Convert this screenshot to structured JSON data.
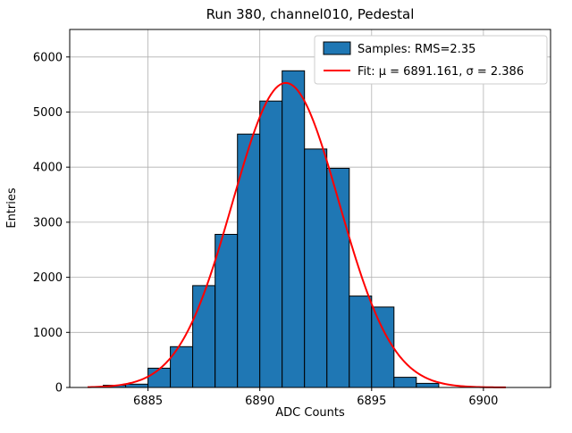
{
  "chart_data": {
    "type": "bar",
    "subtype": "histogram",
    "title": "Run 380, channel010, Pedestal",
    "xlabel": "ADC Counts",
    "ylabel": "Entries",
    "grid": true,
    "xlim": [
      6881.5,
      6903
    ],
    "ylim": [
      0,
      6500
    ],
    "xticks": [
      6885,
      6890,
      6895,
      6900
    ],
    "yticks": [
      0,
      1000,
      2000,
      3000,
      4000,
      5000,
      6000
    ],
    "bin_width": 1,
    "bin_left_edges": [
      6883,
      6884,
      6885,
      6886,
      6887,
      6888,
      6889,
      6890,
      6891,
      6892,
      6893,
      6894,
      6895,
      6896,
      6897
    ],
    "values": [
      40,
      60,
      350,
      740,
      1850,
      2780,
      4600,
      5200,
      5750,
      4330,
      3980,
      1660,
      1460,
      185,
      75
    ],
    "bar_color": "#1f77b4",
    "bar_edge_color": "#000000",
    "grid_color": "#b0b0b0",
    "fit": {
      "mu": 6891.161,
      "sigma": 2.386,
      "amplitude": 5530,
      "color": "#ff0000",
      "x_start": 6882.3,
      "x_end": 6901.0
    },
    "legend": {
      "position": "upper right",
      "entries": [
        {
          "label": "Samples: RMS=2.35",
          "marker": "patch"
        },
        {
          "label": "Fit: μ = 6891.161, σ = 2.386",
          "marker": "line"
        }
      ]
    }
  }
}
